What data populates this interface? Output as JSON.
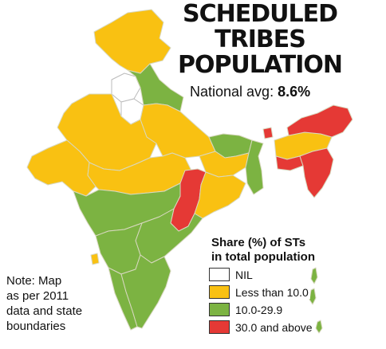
{
  "title": {
    "line1": "SCHEDULED TRIBES",
    "line2": "POPULATION"
  },
  "national_avg": {
    "label": "National avg:",
    "value": "8.6%"
  },
  "legend": {
    "title_line1": "Share (%) of STs",
    "title_line2": "in total population",
    "items": [
      {
        "label": "NIL",
        "color": "#ffffff"
      },
      {
        "label": "Less than 10.0",
        "color": "#f9c112"
      },
      {
        "label": "10.0-29.9",
        "color": "#7cb342"
      },
      {
        "label": "30.0 and above",
        "color": "#e53935"
      }
    ]
  },
  "note": {
    "line1": "Note: Map",
    "line2": "as per 2011",
    "line3": "data and state",
    "line4": "boundaries"
  },
  "colors": {
    "nil": "#ffffff",
    "low": "#f9c112",
    "mid": "#7cb342",
    "high": "#e53935",
    "border": "#c9c9a8"
  }
}
